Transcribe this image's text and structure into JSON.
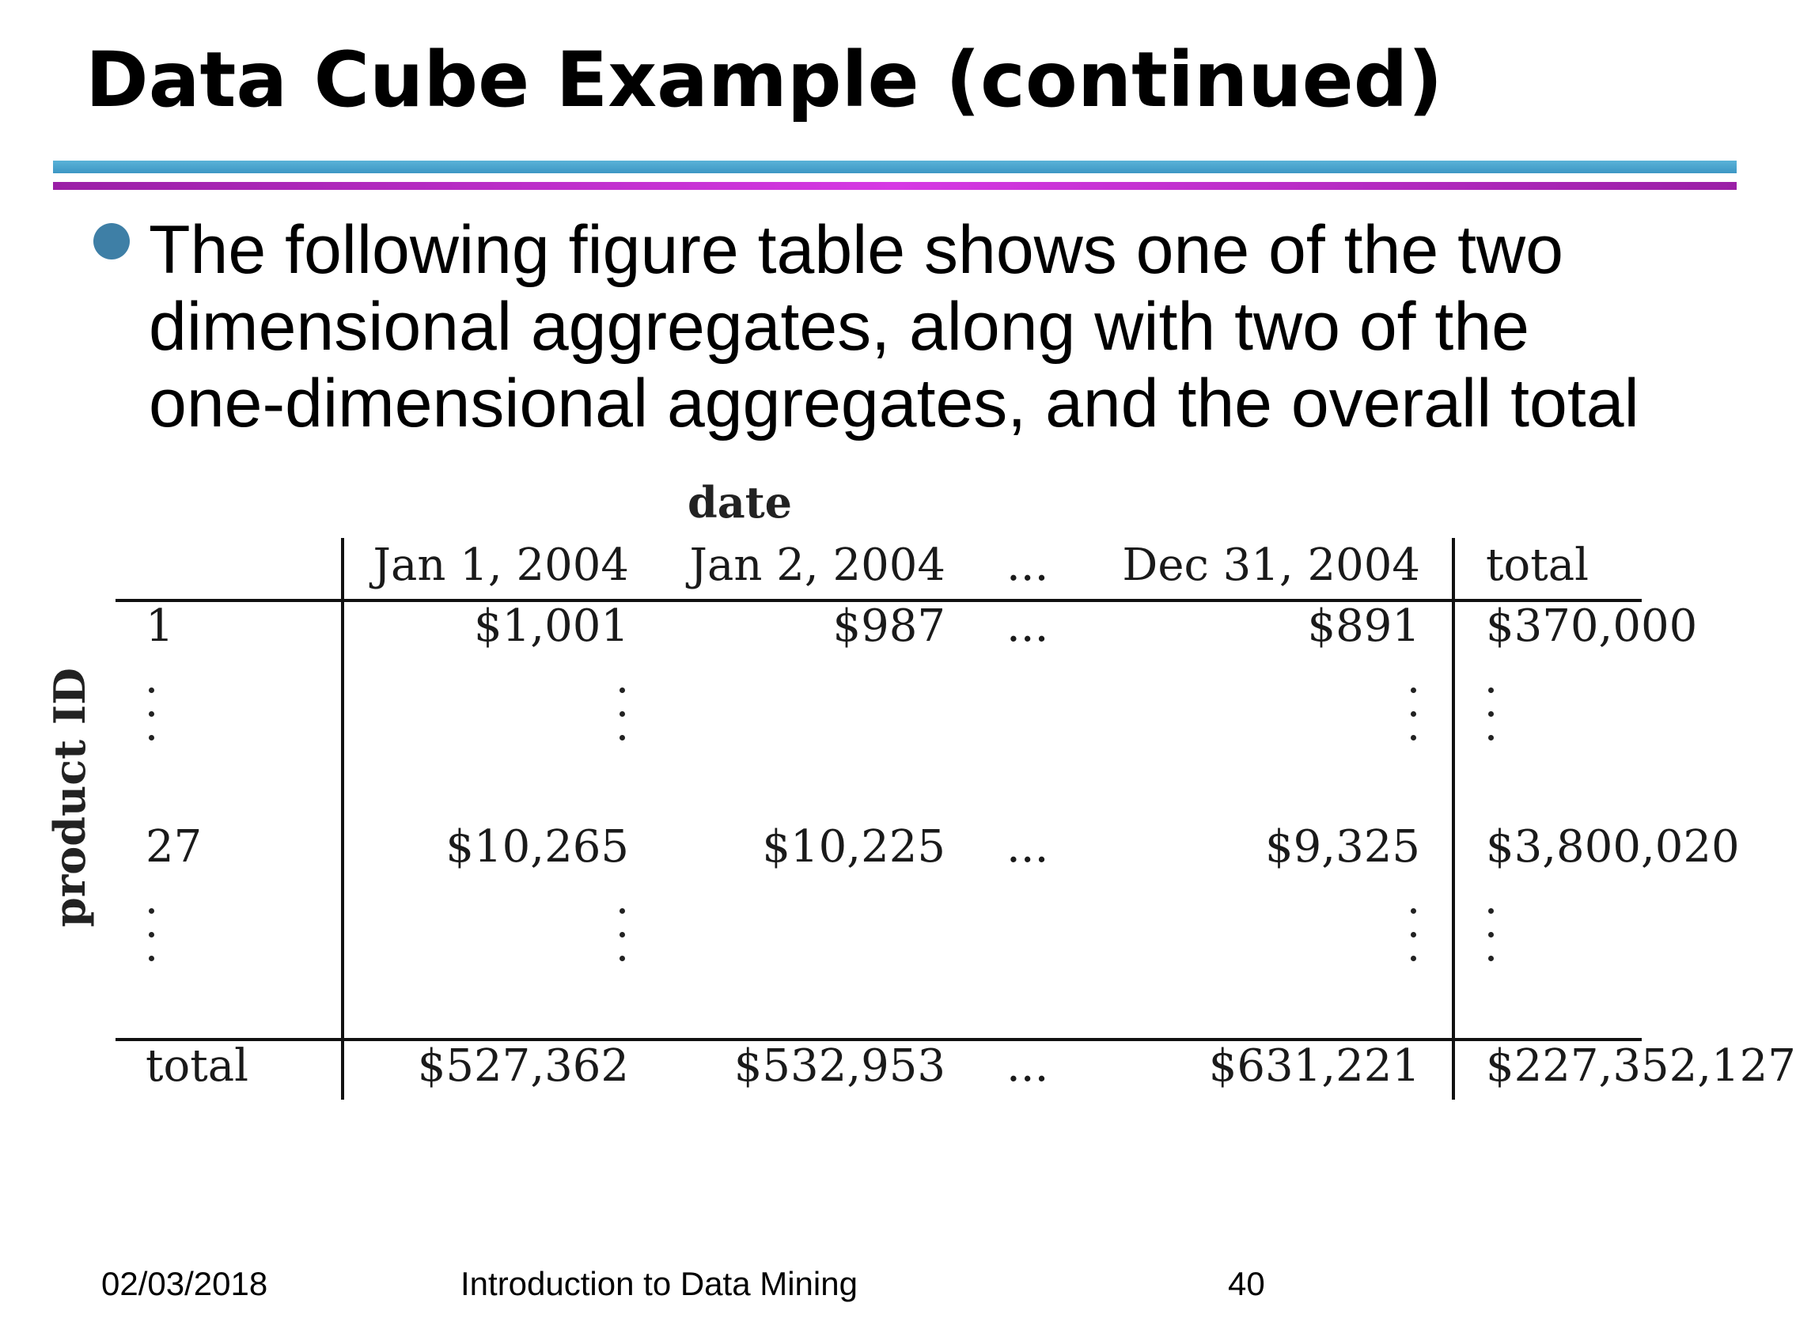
{
  "slide": {
    "title": "Data Cube Example (continued)",
    "bullet_lines": [
      "The following figure table shows one of the two",
      "dimensional aggregates, along with two of the",
      "one-dimensional aggregates, and the overall total"
    ]
  },
  "table": {
    "column_axis_label": "date",
    "row_axis_label": "product ID",
    "headers": [
      "Jan 1, 2004",
      "Jan 2, 2004",
      "...",
      "Dec 31, 2004",
      "total"
    ],
    "rows": [
      {
        "label": "1",
        "values": [
          "$1,001",
          "$987",
          "...",
          "$891",
          "$370,000"
        ]
      },
      {
        "label": "27",
        "values": [
          "$10,265",
          "$10,225",
          "...",
          "$9,325",
          "$3,800,020"
        ]
      }
    ],
    "total_row": {
      "label": "total",
      "values": [
        "$527,362",
        "$532,953",
        "...",
        "$631,221",
        "$227,352,127"
      ]
    }
  },
  "footer": {
    "date": "02/03/2018",
    "course": "Introduction to Data Mining",
    "page": "40"
  },
  "colors": {
    "rule_blue": "#3d97c4",
    "rule_purple": "#b82cc4",
    "bullet": "#3e7fa6"
  }
}
